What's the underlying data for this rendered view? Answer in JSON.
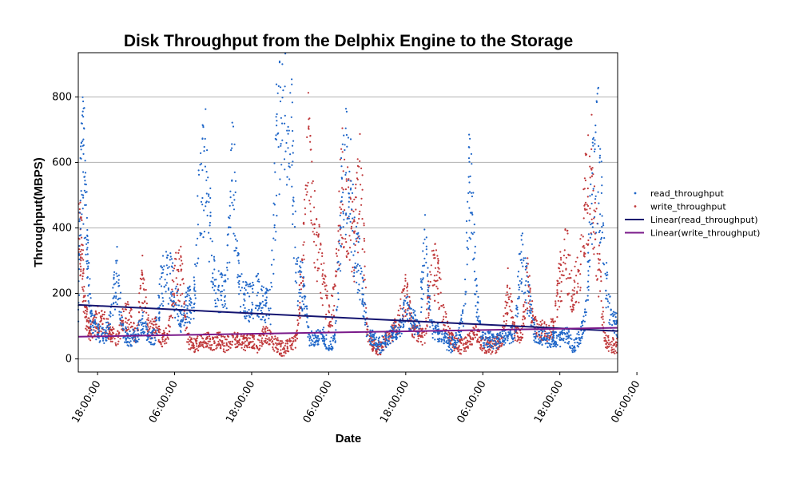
{
  "chart_data": {
    "type": "scatter",
    "title": "Disk Throughput from the Delphix Engine to the Storage",
    "xlabel": "Date",
    "ylabel": "Throughput(MBPS)",
    "ylim": [
      -40,
      935
    ],
    "xlim_hours": [
      -3,
      81
    ],
    "yticks": [
      0,
      200,
      400,
      600,
      800
    ],
    "xtick_labels": [
      "18:00:00",
      "06:00:00",
      "18:00:00",
      "06:00:00",
      "18:00:00",
      "06:00:00",
      "18:00:00",
      "06:00:00"
    ],
    "grid": "horizontal",
    "legend_position": "right",
    "colors": {
      "read": "#1f66c8",
      "write": "#c0393b",
      "read_trend": "#141470",
      "write_trend": "#7a1a8a",
      "grid": "#b0b0b0"
    },
    "series": [
      {
        "name": "read_throughput",
        "kind": "points",
        "description_hours": "hourly representative values",
        "x": [
          -3,
          -2.5,
          -2,
          -1.5,
          -1,
          0,
          1,
          2,
          3,
          4,
          5,
          6,
          7,
          8,
          9,
          10,
          11,
          12,
          13,
          14,
          15,
          16,
          17,
          18,
          19,
          20,
          21,
          22,
          23,
          24,
          25,
          26,
          27,
          28,
          29,
          30,
          31,
          32,
          33,
          34,
          35,
          36,
          37,
          38,
          39,
          40,
          41,
          42,
          43,
          44,
          45,
          46,
          47,
          48,
          49,
          50,
          51,
          52,
          53,
          54,
          55,
          56,
          57,
          58,
          59,
          60,
          61,
          62,
          63,
          64,
          65,
          66,
          67,
          68,
          69,
          70,
          71,
          72,
          73,
          74,
          75,
          76,
          77,
          78,
          79,
          80,
          81
        ],
        "y": [
          150,
          640,
          560,
          300,
          120,
          80,
          70,
          110,
          260,
          80,
          60,
          70,
          110,
          60,
          70,
          240,
          260,
          200,
          120,
          160,
          180,
          520,
          580,
          240,
          200,
          190,
          620,
          230,
          180,
          170,
          200,
          160,
          160,
          700,
          820,
          780,
          240,
          220,
          60,
          60,
          80,
          40,
          60,
          480,
          610,
          360,
          260,
          80,
          60,
          40,
          60,
          80,
          90,
          150,
          120,
          100,
          340,
          90,
          80,
          60,
          40,
          60,
          120,
          570,
          200,
          60,
          60,
          50,
          60,
          70,
          80,
          320,
          200,
          80,
          70,
          60,
          60,
          60,
          80,
          40,
          60,
          120,
          500,
          620,
          260,
          120,
          100
        ]
      },
      {
        "name": "write_throughput",
        "kind": "points",
        "description_hours": "hourly representative values",
        "x": [
          -3,
          -2.5,
          -2,
          -1.5,
          -1,
          0,
          1,
          2,
          3,
          4,
          5,
          6,
          7,
          8,
          9,
          10,
          11,
          12,
          13,
          14,
          15,
          16,
          17,
          18,
          19,
          20,
          21,
          22,
          23,
          24,
          25,
          26,
          27,
          28,
          29,
          30,
          31,
          32,
          33,
          34,
          35,
          36,
          37,
          38,
          39,
          40,
          41,
          42,
          43,
          44,
          45,
          46,
          47,
          48,
          49,
          50,
          51,
          52,
          53,
          54,
          55,
          56,
          57,
          58,
          59,
          60,
          61,
          62,
          63,
          64,
          65,
          66,
          67,
          68,
          69,
          70,
          71,
          72,
          73,
          74,
          75,
          76,
          77,
          78,
          79,
          80,
          81
        ],
        "y": [
          380,
          340,
          160,
          100,
          80,
          120,
          110,
          80,
          60,
          120,
          140,
          60,
          240,
          90,
          100,
          60,
          80,
          240,
          260,
          60,
          40,
          50,
          60,
          50,
          60,
          40,
          60,
          60,
          50,
          60,
          40,
          80,
          60,
          40,
          30,
          40,
          60,
          300,
          680,
          350,
          260,
          120,
          180,
          540,
          440,
          360,
          540,
          80,
          40,
          30,
          60,
          80,
          120,
          200,
          100,
          80,
          60,
          300,
          240,
          120,
          60,
          40,
          40,
          60,
          80,
          40,
          40,
          40,
          60,
          220,
          80,
          60,
          240,
          100,
          90,
          80,
          100,
          240,
          320,
          200,
          240,
          480,
          560,
          300,
          60,
          40,
          40
        ]
      },
      {
        "name": "Linear(read_throughput)",
        "kind": "line",
        "x": [
          -3,
          81
        ],
        "y": [
          165,
          85
        ]
      },
      {
        "name": "Linear(write_throughput)",
        "kind": "line",
        "x": [
          -3,
          81
        ],
        "y": [
          68,
          95
        ]
      }
    ]
  }
}
